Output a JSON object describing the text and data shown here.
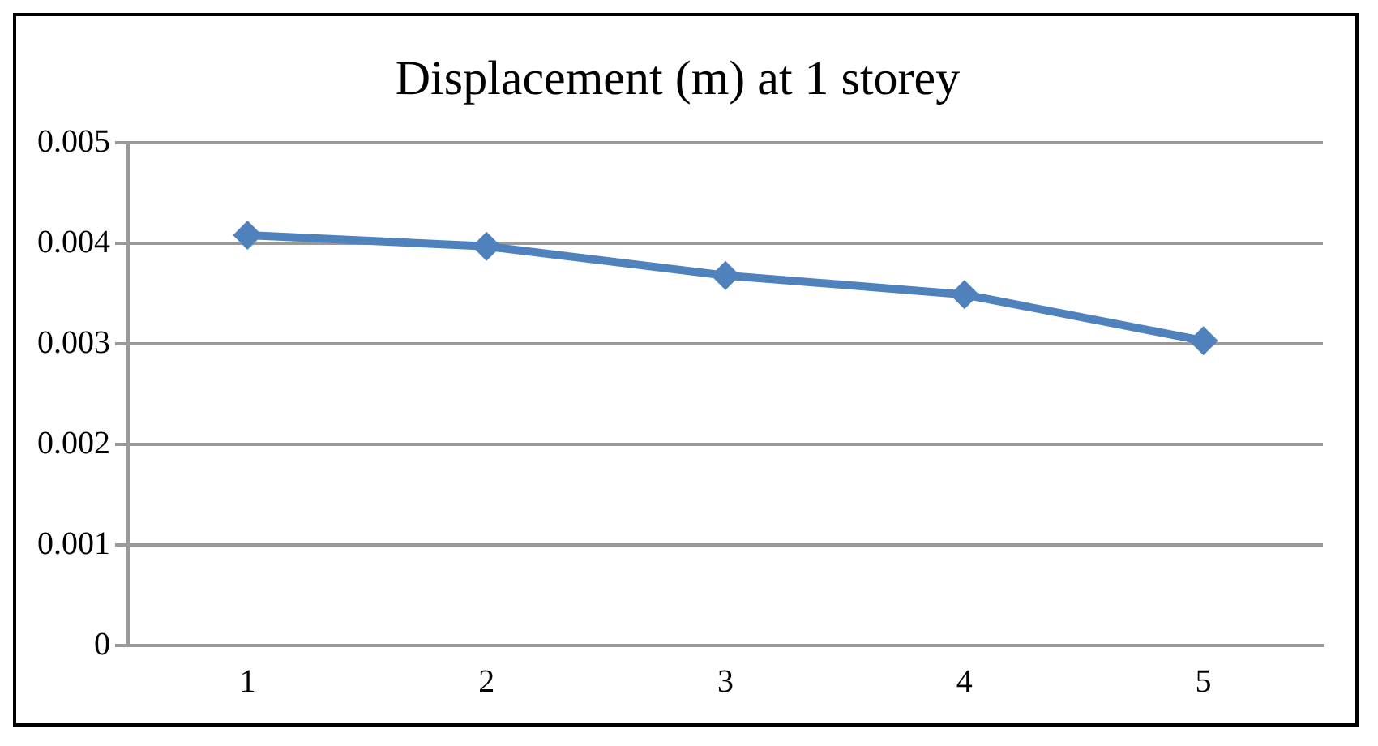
{
  "chart_data": {
    "type": "line",
    "title": "Displacement (m) at 1 storey",
    "categories": [
      "1",
      "2",
      "3",
      "4",
      "5"
    ],
    "series": [
      {
        "color": "#4f81bd",
        "values": [
          0.00408,
          0.00397,
          0.00368,
          0.00349,
          0.00303
        ]
      }
    ],
    "ylim": [
      0,
      0.005
    ],
    "yticks": [
      0,
      0.001,
      0.002,
      0.003,
      0.004,
      0.005
    ],
    "grid": "y",
    "legend": false,
    "marker": "diamond",
    "line_style": "solid"
  }
}
